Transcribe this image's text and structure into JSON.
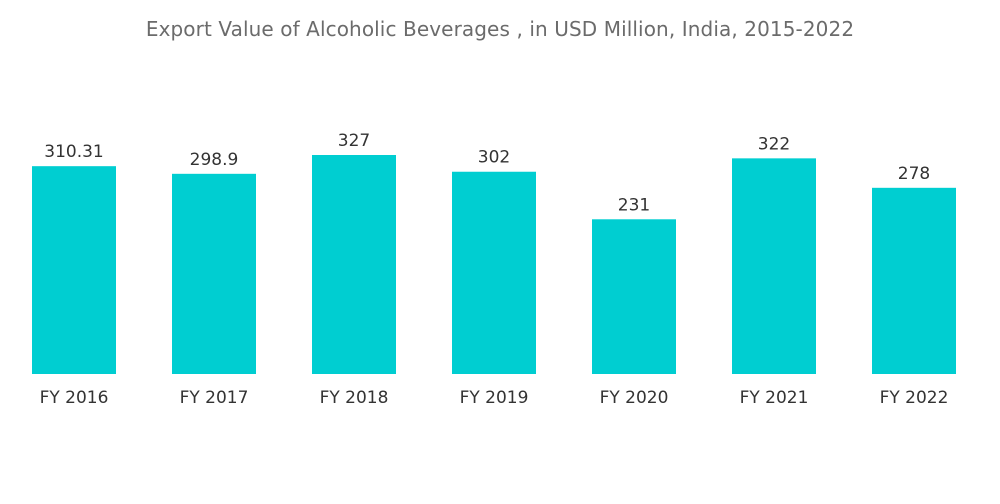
{
  "chart_data": {
    "type": "bar",
    "title": "Export Value of Alcoholic Beverages , in USD Million, India, 2015-2022",
    "xlabel": "",
    "ylabel": "",
    "categories": [
      "FY 2016",
      "FY 2017",
      "FY 2018",
      "FY 2019",
      "FY 2020",
      "FY 2021",
      "FY 2022"
    ],
    "values": [
      310.31,
      298.9,
      327,
      302,
      231,
      322,
      278
    ],
    "value_labels": [
      "310.31",
      "298.9",
      "327",
      "302",
      "231",
      "322",
      "278"
    ],
    "ylim": [
      0,
      327
    ],
    "grid": false,
    "legend": "none",
    "bar_color": "#00CED1"
  }
}
